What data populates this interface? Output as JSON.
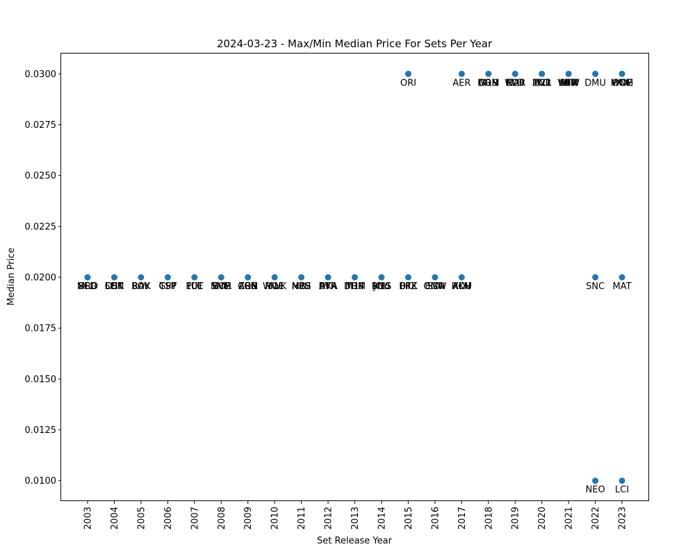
{
  "chart_data": {
    "type": "scatter",
    "title": "2024-03-23 - Max/Min Median Price For Sets Per Year",
    "xlabel": "Set Release Year",
    "ylabel": "Median Price",
    "x_categories": [
      "2003",
      "2004",
      "2005",
      "2006",
      "2007",
      "2008",
      "2009",
      "2010",
      "2011",
      "2012",
      "2013",
      "2014",
      "2015",
      "2016",
      "2017",
      "2018",
      "2019",
      "2020",
      "2021",
      "2022",
      "2023"
    ],
    "y_ticks": [
      "0.0100",
      "0.0125",
      "0.0150",
      "0.0175",
      "0.0200",
      "0.0225",
      "0.0250",
      "0.0275",
      "0.0300"
    ],
    "ylim": [
      0.009,
      0.031
    ],
    "grid": false,
    "points": [
      {
        "x": "2003",
        "y": 0.02,
        "labels": [
          "MRD",
          "8ED",
          "SCG"
        ]
      },
      {
        "x": "2004",
        "y": 0.02,
        "labels": [
          "5DN",
          "CHK",
          "DST"
        ]
      },
      {
        "x": "2005",
        "y": 0.02,
        "labels": [
          "BOK",
          "SOK",
          "RAV"
        ]
      },
      {
        "x": "2006",
        "y": 0.02,
        "labels": [
          "GPT",
          "TSP",
          "CSP"
        ]
      },
      {
        "x": "2007",
        "y": 0.02,
        "labels": [
          "PLC",
          "FUT",
          "10E"
        ]
      },
      {
        "x": "2008",
        "y": 0.02,
        "labels": [
          "SHM",
          "EVE",
          "MOR"
        ]
      },
      {
        "x": "2009",
        "y": 0.02,
        "labels": [
          "CON",
          "ARB",
          "ZEN"
        ]
      },
      {
        "x": "2010",
        "y": 0.02,
        "labels": [
          "WWK",
          "ROE",
          "M11"
        ]
      },
      {
        "x": "2011",
        "y": 0.02,
        "labels": [
          "MBS",
          "NPH",
          "M12"
        ]
      },
      {
        "x": "2012",
        "y": 0.02,
        "labels": [
          "DKA",
          "AVR",
          "RTR"
        ]
      },
      {
        "x": "2013",
        "y": 0.02,
        "labels": [
          "DGM",
          "M14",
          "THS"
        ]
      },
      {
        "x": "2014",
        "y": 0.02,
        "labels": [
          "JOU",
          "BNG",
          "M15"
        ]
      },
      {
        "x": "2015",
        "y": 0.02,
        "labels": [
          "FRF",
          "DTK",
          "BFZ"
        ]
      },
      {
        "x": "2016",
        "y": 0.02,
        "labels": [
          "OGW",
          "SOI",
          "EMN"
        ]
      },
      {
        "x": "2017",
        "y": 0.02,
        "labels": [
          "AKH",
          "HOU",
          "XLN"
        ]
      },
      {
        "x": "2015",
        "y": 0.03,
        "labels": [
          "ORI"
        ]
      },
      {
        "x": "2017",
        "y": 0.03,
        "labels": [
          "AER"
        ]
      },
      {
        "x": "2018",
        "y": 0.03,
        "labels": [
          "DOM",
          "M19",
          "GRN"
        ]
      },
      {
        "x": "2019",
        "y": 0.03,
        "labels": [
          "WAR",
          "M20",
          "ELD"
        ]
      },
      {
        "x": "2020",
        "y": 0.03,
        "labels": [
          "IKO",
          "M21",
          "ZNR"
        ]
      },
      {
        "x": "2021",
        "y": 0.03,
        "labels": [
          "KHM",
          "STX",
          "AFR",
          "MID",
          "VOW"
        ]
      },
      {
        "x": "2022",
        "y": 0.03,
        "labels": [
          "DMU"
        ]
      },
      {
        "x": "2023",
        "y": 0.03,
        "labels": [
          "ONE",
          "MOM",
          "WOE"
        ]
      },
      {
        "x": "2022",
        "y": 0.02,
        "labels": [
          "SNC"
        ]
      },
      {
        "x": "2023",
        "y": 0.02,
        "labels": [
          "MAT"
        ]
      },
      {
        "x": "2022",
        "y": 0.01,
        "labels": [
          "NEO"
        ]
      },
      {
        "x": "2023",
        "y": 0.01,
        "labels": [
          "LCI"
        ]
      }
    ]
  }
}
